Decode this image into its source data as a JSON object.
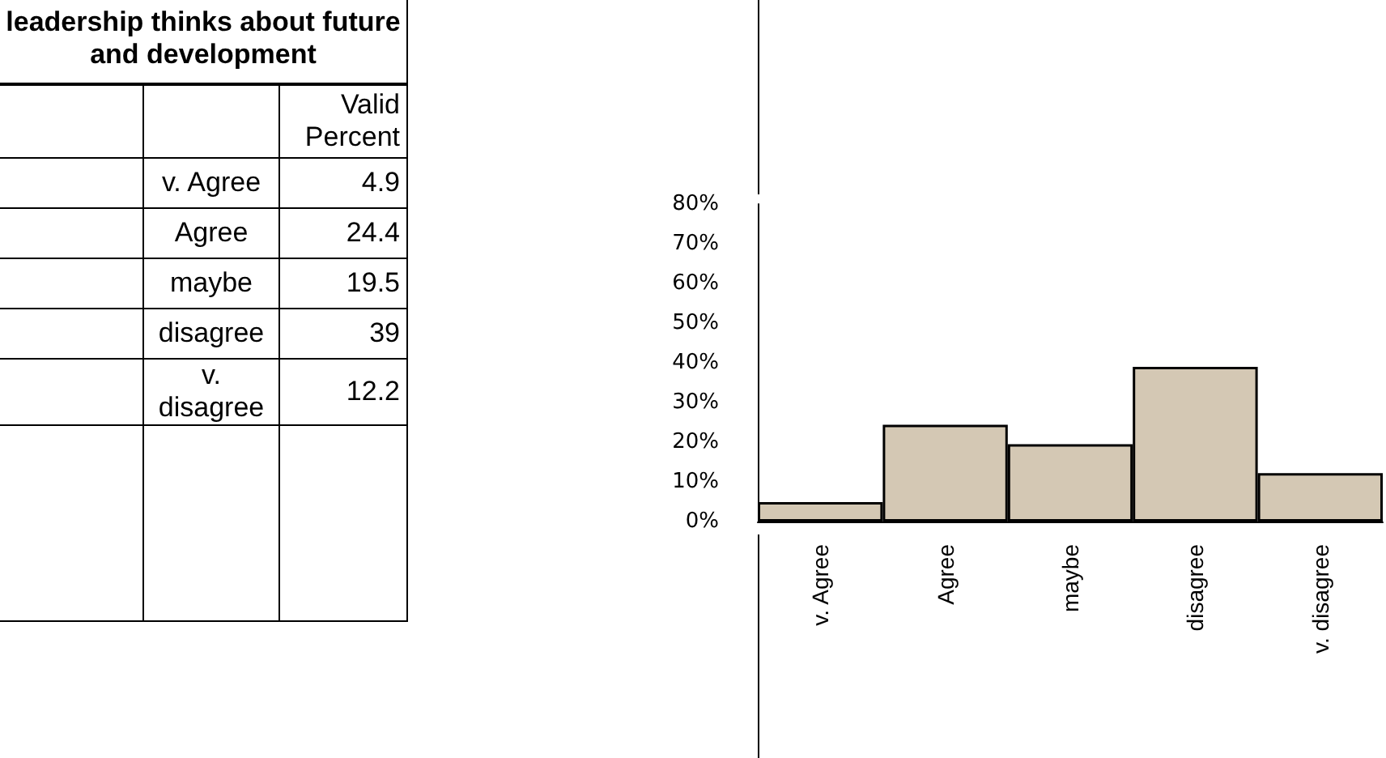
{
  "chart_data": [
    {
      "type": "other",
      "title": "leadership thinks about future and development",
      "annotations": [
        "Valid Percent",
        "v. Agree",
        "4.9",
        "Agree",
        "24.4",
        "maybe",
        "19.5",
        "disagree",
        "39",
        "v. disagree",
        "12.2"
      ]
    },
    {
      "type": "bar",
      "categories": [
        "v. Agree",
        "Agree",
        "maybe",
        "disagree",
        "v. disagree"
      ],
      "values": [
        4.9,
        24.4,
        19.5,
        39,
        12.2
      ],
      "color": "#d4c8b4",
      "ylim": [
        0,
        80
      ],
      "yticks": [
        {
          "value": 0,
          "label": "0%"
        },
        {
          "value": 10,
          "label": "10%"
        },
        {
          "value": 20,
          "label": "20%"
        },
        {
          "value": 30,
          "label": "30%"
        },
        {
          "value": 40,
          "label": "40%"
        },
        {
          "value": 50,
          "label": "50%"
        },
        {
          "value": 60,
          "label": "60%"
        },
        {
          "value": 70,
          "label": "70%"
        },
        {
          "value": 80,
          "label": "80%"
        }
      ],
      "grid": false
    }
  ]
}
